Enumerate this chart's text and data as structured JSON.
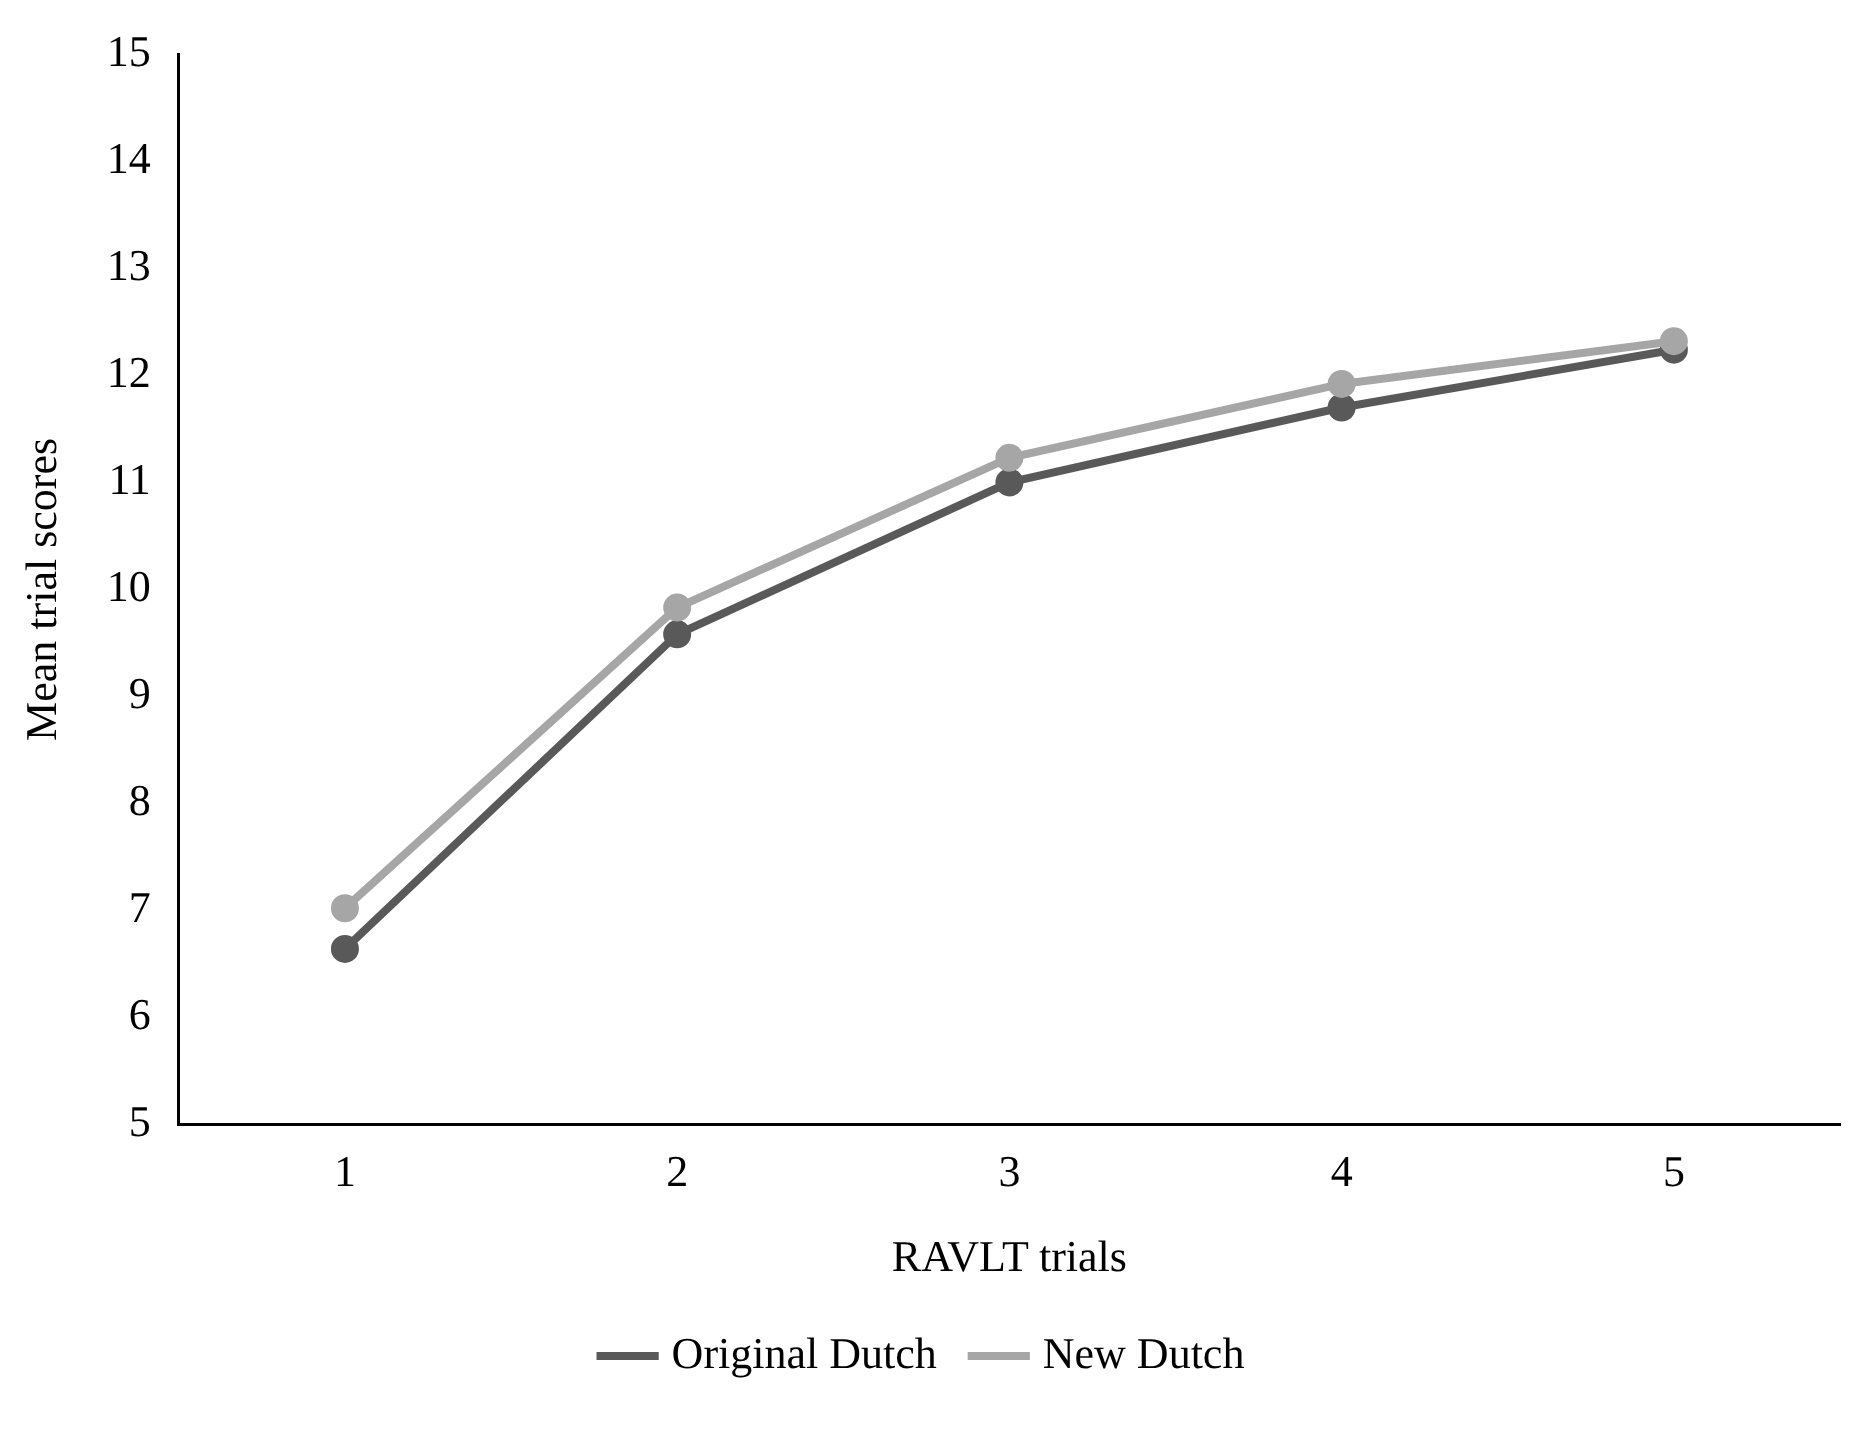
{
  "chart_data": {
    "type": "line",
    "xlabel": "RAVLT trials",
    "ylabel": "Mean trial scores",
    "categories": [
      "1",
      "2",
      "3",
      "4",
      "5"
    ],
    "series": [
      {
        "name": "Original Dutch",
        "color": "#595959",
        "values": [
          6.64,
          9.58,
          11.0,
          11.7,
          12.24
        ]
      },
      {
        "name": "New Dutch",
        "color": "#a6a6a6",
        "values": [
          7.02,
          9.83,
          11.23,
          11.92,
          12.32
        ]
      }
    ],
    "ylim": [
      5,
      15
    ],
    "yticks": [
      5,
      6,
      7,
      8,
      9,
      10,
      11,
      12,
      13,
      14,
      15
    ],
    "grid": false,
    "legend": "bottom",
    "marker": "circle",
    "line_style": "solid"
  }
}
